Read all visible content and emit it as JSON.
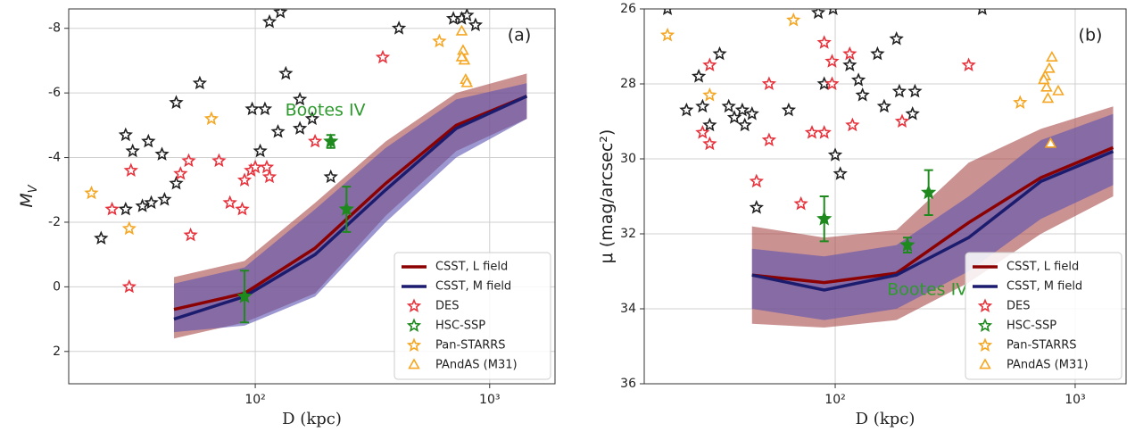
{
  "chart_data": [
    {
      "type": "scatter",
      "xlabel": "D (kpc)",
      "ylabel": "M",
      "ylabel_sub": "V",
      "panel_label": "(a)",
      "annotation": {
        "text": "Bootes IV",
        "x": 199,
        "y": -5.45,
        "color": "#2e9a2e"
      },
      "xscale": "log",
      "xlim": [
        16,
        1900
      ],
      "xticks": [
        {
          "value": 100,
          "label": "10²"
        },
        {
          "value": 1000,
          "label": "10³"
        }
      ],
      "ylim": [
        3,
        -8.6
      ],
      "yticks": [
        -8,
        -6,
        -4,
        -2,
        0,
        2
      ],
      "grid": true,
      "legend": "lower right",
      "series": [
        {
          "name": "CSST, L field",
          "marker": "line",
          "color": "#8b0000",
          "band_color": "#a84a4a",
          "x": [
            45,
            90,
            180,
            360,
            720,
            1440
          ],
          "values": [
            0.7,
            0.2,
            -1.2,
            -3.2,
            -5.0,
            -5.9
          ],
          "band_low": [
            1.6,
            1.1,
            0.2,
            -2.2,
            -4.2,
            -5.2
          ],
          "band_high": [
            -0.3,
            -0.8,
            -2.6,
            -4.5,
            -6.0,
            -6.6
          ]
        },
        {
          "name": "CSST, M field",
          "marker": "line",
          "color": "#1c1c6e",
          "band_color": "#5a52b0",
          "x": [
            45,
            90,
            180,
            360,
            720,
            1440
          ],
          "values": [
            1.0,
            0.3,
            -1.0,
            -3.0,
            -4.9,
            -5.9
          ],
          "band_low": [
            1.4,
            1.2,
            0.3,
            -2.0,
            -4.0,
            -5.2
          ],
          "band_high": [
            -0.1,
            -0.6,
            -2.4,
            -4.3,
            -5.8,
            -6.3
          ]
        },
        {
          "marker": "star",
          "color": "#222222",
          "x": [
            22,
            28,
            28,
            30,
            33,
            35,
            36,
            40,
            41,
            46,
            46,
            58,
            97,
            105,
            110,
            115,
            125,
            128,
            135,
            155,
            155,
            175,
            210,
            410,
            700,
            760,
            800,
            870
          ],
          "values": [
            -1.5,
            -2.4,
            -4.7,
            -4.2,
            -2.5,
            -4.5,
            -2.6,
            -4.1,
            -2.7,
            -3.2,
            -5.7,
            -6.3,
            -5.5,
            -4.2,
            -5.5,
            -8.2,
            -4.8,
            -8.5,
            -6.6,
            -5.8,
            -4.9,
            -5.2,
            -3.4,
            -8.0,
            -8.3,
            -8.3,
            -8.4,
            -8.1
          ]
        },
        {
          "name": "DES",
          "marker": "star",
          "color": "#e8323c",
          "x": [
            29,
            24.5,
            29.5,
            52,
            48,
            70,
            53,
            78,
            88,
            90,
            96,
            100,
            112,
            115,
            180,
            350
          ],
          "values": [
            0,
            -2.4,
            -3.6,
            -3.9,
            -3.5,
            -3.9,
            -1.6,
            -2.6,
            -2.4,
            -3.3,
            -3.6,
            -3.7,
            -3.7,
            -3.4,
            -4.5,
            -7.1
          ]
        },
        {
          "name": "HSC-SSP",
          "marker": "star",
          "color": "#1e8a1e",
          "x": [
            90,
            210,
            245
          ],
          "values": [
            0.3,
            -4.5,
            -2.4
          ],
          "errors": [
            0.8,
            0.2,
            0.7
          ]
        },
        {
          "name": "Pan-STARRS",
          "marker": "star",
          "color": "#f5a623",
          "x": [
            20,
            29,
            65,
            610
          ],
          "values": [
            -2.9,
            -1.8,
            -5.2,
            -7.6
          ]
        },
        {
          "name": "PAndAS (M31)",
          "marker": "triangle",
          "color": "#f5a623",
          "x": [
            760,
            770,
            780,
            790,
            800,
            760
          ],
          "values": [
            -7.9,
            -7.3,
            -7.0,
            -6.4,
            -6.3,
            -7.1
          ]
        }
      ]
    },
    {
      "type": "scatter",
      "xlabel": "D (kpc)",
      "ylabel": "μ (mag/arcsec²)",
      "panel_label": "(b)",
      "annotation": {
        "text": "Bootes IV",
        "x": 242,
        "y": 33.5,
        "color": "#2e9a2e"
      },
      "xscale": "log",
      "xlim": [
        16,
        1630
      ],
      "xticks": [
        {
          "value": 100,
          "label": "10²"
        },
        {
          "value": 1000,
          "label": "10³"
        }
      ],
      "ylim": [
        36,
        26
      ],
      "yticks": [
        26,
        28,
        30,
        32,
        34,
        36
      ],
      "grid": true,
      "legend": "lower right",
      "series": [
        {
          "name": "CSST, L field",
          "marker": "line",
          "color": "#8b0000",
          "band_color": "#a84a4a",
          "x": [
            45,
            90,
            180,
            360,
            720,
            1440
          ],
          "values": [
            33.1,
            33.3,
            33.05,
            31.7,
            30.5,
            29.7
          ],
          "band_low": [
            34.4,
            34.5,
            34.3,
            33.3,
            32.0,
            31.0
          ],
          "band_high": [
            31.8,
            32.1,
            31.9,
            30.1,
            29.2,
            28.6
          ]
        },
        {
          "name": "CSST, M field",
          "marker": "line",
          "color": "#1c1c6e",
          "band_color": "#5a52b0",
          "x": [
            45,
            90,
            180,
            360,
            720,
            1440
          ],
          "values": [
            33.1,
            33.5,
            33.1,
            32.1,
            30.6,
            29.8
          ],
          "band_low": [
            34.0,
            34.3,
            34.0,
            33.0,
            31.6,
            30.7
          ],
          "band_high": [
            32.4,
            32.6,
            32.3,
            31.0,
            29.5,
            28.8
          ]
        },
        {
          "marker": "star",
          "color": "#222222",
          "x": [
            20,
            24,
            27,
            28,
            30,
            33,
            36,
            38,
            41,
            42,
            45,
            47,
            64,
            85,
            90,
            98,
            100,
            105,
            115,
            125,
            130,
            150,
            160,
            180,
            185,
            210,
            215,
            410
          ],
          "values": [
            26.0,
            28.7,
            27.8,
            28.6,
            29.1,
            27.2,
            28.6,
            28.9,
            28.7,
            29.1,
            28.8,
            31.3,
            28.7,
            26.1,
            28.0,
            26.0,
            29.9,
            30.4,
            27.5,
            27.9,
            28.3,
            27.2,
            28.6,
            26.8,
            28.2,
            28.8,
            28.2,
            26.0
          ]
        },
        {
          "name": "DES",
          "marker": "star",
          "color": "#e8323c",
          "x": [
            28,
            30,
            30,
            47,
            53,
            53,
            72,
            80,
            90,
            90,
            97,
            97,
            115,
            118,
            190,
            360
          ],
          "values": [
            29.3,
            27.5,
            29.6,
            30.6,
            28.0,
            29.5,
            31.2,
            29.3,
            26.9,
            29.3,
            27.4,
            28.0,
            27.2,
            29.1,
            29.0,
            27.5
          ]
        },
        {
          "name": "HSC-SSP",
          "marker": "star",
          "color": "#1e8a1e",
          "x": [
            90,
            200,
            245
          ],
          "values": [
            31.6,
            32.3,
            30.9
          ],
          "errors": [
            0.6,
            0.2,
            0.6
          ]
        },
        {
          "name": "Pan-STARRS",
          "marker": "star",
          "color": "#f5a623",
          "x": [
            20,
            30,
            67,
            590
          ],
          "values": [
            26.7,
            28.3,
            26.3,
            28.5
          ]
        },
        {
          "name": "PAndAS (M31)",
          "marker": "triangle",
          "color": "#f5a623",
          "x": [
            750,
            760,
            770,
            780,
            790,
            800,
            850,
            740
          ],
          "values": [
            27.8,
            28.1,
            28.4,
            27.6,
            29.6,
            27.3,
            28.2,
            27.9
          ]
        }
      ]
    }
  ]
}
